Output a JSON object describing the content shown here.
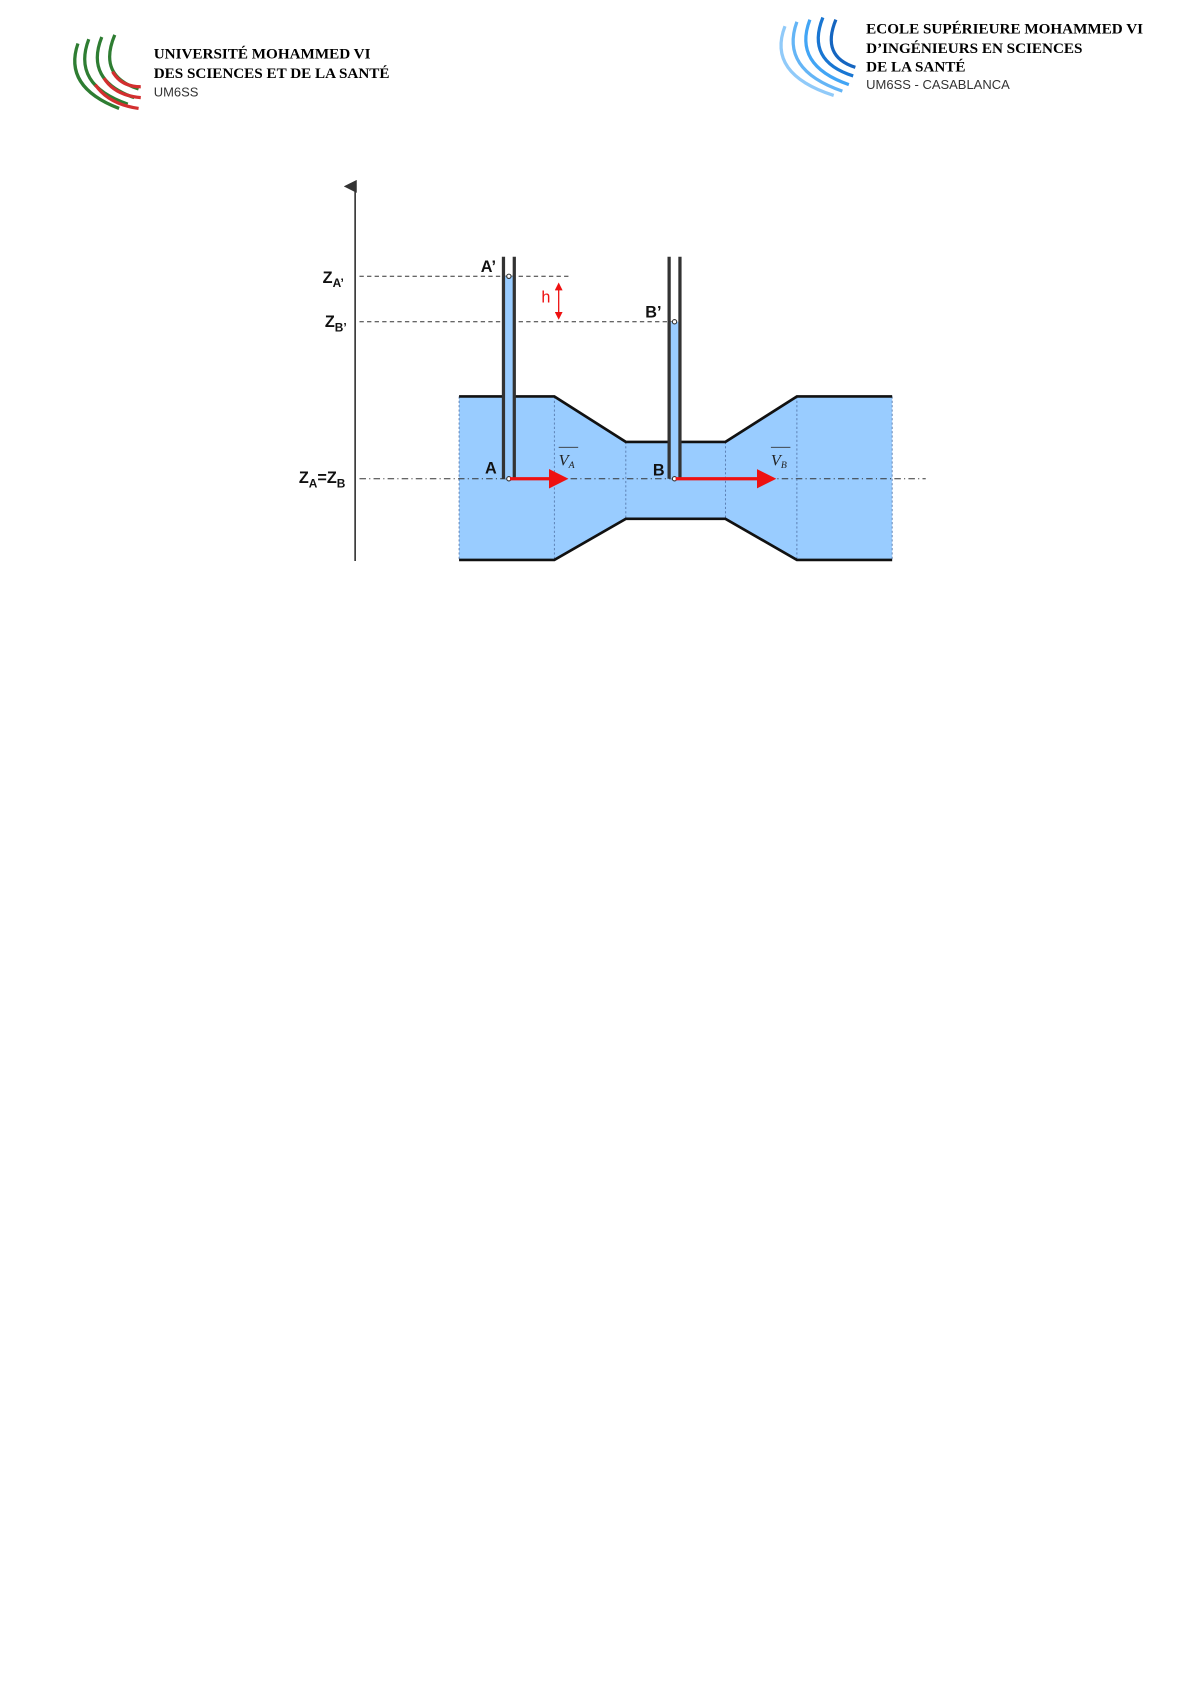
{
  "header": {
    "left_logo": {
      "line1": "UNIVERSITÉ MOHAMMED VI",
      "line2": "DES SCIENCES ET DE LA SANTÉ",
      "line3": "UM6SS",
      "colors": [
        "#2e7d32",
        "#d32f2f"
      ]
    },
    "right_logo": {
      "line1": "ECOLE SUPÉRIEURE MOHAMMED VI",
      "line2": "D’INGÉNIEURS EN SCIENCES",
      "line3": "DE LA SANTÉ",
      "line4": "UM6SS - CASABLANCA",
      "colors": [
        "#1565c0",
        "#90caf9"
      ]
    }
  },
  "figure": {
    "labels": {
      "z_a_prime": "Z",
      "z_a_prime_sub": "A’",
      "z_b_prime": "Z",
      "z_b_prime_sub": "B’",
      "z_a_eq_z_b": "Z",
      "z_a_sub": "A",
      "eq": "=Z",
      "z_b_sub": "B",
      "a_prime": "A’",
      "b_prime": "B’",
      "a": "A",
      "b": "B",
      "h": "h",
      "v_a": "V",
      "v_a_sub": "A",
      "v_b": "V",
      "v_b_sub": "B"
    },
    "colors": {
      "fluid": "#99ccff",
      "arrow": "#ee1111",
      "wall": "#111111"
    }
  }
}
